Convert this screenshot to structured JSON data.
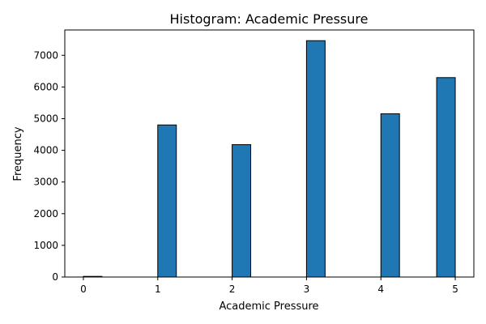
{
  "chart_data": {
    "type": "bar",
    "title": "Histogram: Academic Pressure",
    "xlabel": "Academic Pressure",
    "ylabel": "Frequency",
    "xlim": [
      -0.25,
      5.25
    ],
    "ylim": [
      0,
      7800
    ],
    "xticks": [
      0,
      1,
      2,
      3,
      4,
      5
    ],
    "yticks": [
      0,
      1000,
      2000,
      3000,
      4000,
      5000,
      6000,
      7000
    ],
    "bins": [
      {
        "x0": 0.0,
        "x1": 0.25,
        "count": 9
      },
      {
        "x0": 1.0,
        "x1": 1.25,
        "count": 4801
      },
      {
        "x0": 2.0,
        "x1": 2.25,
        "count": 4179
      },
      {
        "x0": 3.0,
        "x1": 3.25,
        "count": 7462
      },
      {
        "x0": 4.0,
        "x1": 4.25,
        "count": 5155
      },
      {
        "x0": 4.75,
        "x1": 5.0,
        "count": 6296
      }
    ],
    "grid": false,
    "colors": {
      "bar_fill": "#1f77b4",
      "bar_edge": "#000000",
      "axes": "#000000"
    }
  }
}
